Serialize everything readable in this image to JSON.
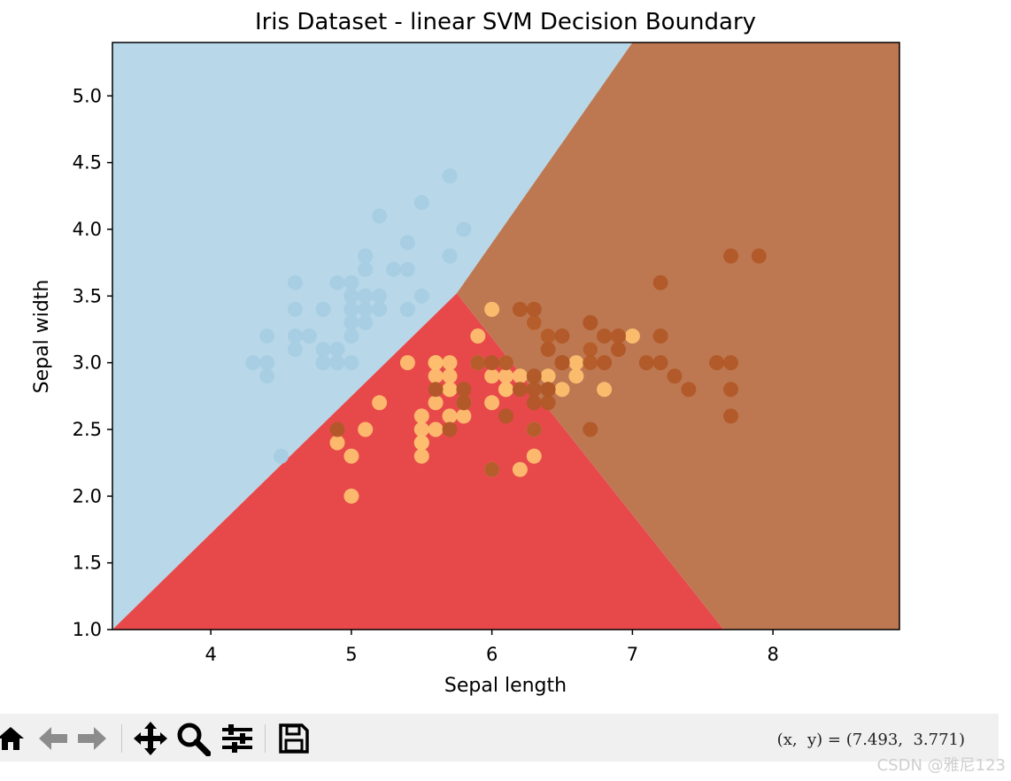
{
  "chart_data": {
    "type": "scatter",
    "title": "Iris Dataset - linear SVM Decision Boundary",
    "xlabel": "Sepal length",
    "ylabel": "Sepal width",
    "xlim": [
      3.3,
      8.9
    ],
    "ylim": [
      1.0,
      5.4
    ],
    "xticks": [
      "4",
      "5",
      "6",
      "7",
      "8"
    ],
    "xtick_values": [
      4,
      5,
      6,
      7,
      8
    ],
    "yticks": [
      "1.0",
      "1.5",
      "2.0",
      "2.5",
      "3.0",
      "3.5",
      "4.0",
      "4.5",
      "5.0"
    ],
    "ytick_values": [
      1.0,
      1.5,
      2.0,
      2.5,
      3.0,
      3.5,
      4.0,
      4.5,
      5.0
    ],
    "grid": false,
    "legend": "none",
    "regions": [
      {
        "class": "setosa",
        "color": "#b8d8e9",
        "polygon": [
          [
            3.3,
            1.0
          ],
          [
            5.75,
            3.52
          ],
          [
            7.0,
            5.4
          ],
          [
            3.3,
            5.4
          ]
        ]
      },
      {
        "class": "versicolor",
        "color": "#e7494b",
        "polygon": [
          [
            3.3,
            1.0
          ],
          [
            5.75,
            3.52
          ],
          [
            7.65,
            1.0
          ]
        ]
      },
      {
        "class": "virginica",
        "color": "#bd7852",
        "polygon": [
          [
            5.75,
            3.52
          ],
          [
            7.0,
            5.4
          ],
          [
            8.9,
            5.4
          ],
          [
            8.9,
            1.0
          ],
          [
            7.65,
            1.0
          ]
        ]
      }
    ],
    "series": [
      {
        "color": "#a6cee3",
        "x": [
          5.1,
          4.9,
          4.7,
          4.6,
          5.0,
          5.4,
          4.6,
          5.0,
          4.4,
          4.9,
          5.4,
          4.8,
          4.8,
          4.3,
          5.8,
          5.7,
          5.4,
          5.1,
          5.7,
          5.1,
          5.4,
          5.1,
          4.6,
          5.1,
          4.8,
          5.0,
          5.0,
          5.2,
          5.2,
          4.7,
          4.8,
          5.4,
          5.2,
          5.5,
          4.9,
          5.0,
          5.5,
          4.9,
          4.4,
          5.1,
          5.0,
          4.5,
          4.4,
          5.0,
          5.1,
          4.8,
          5.1,
          4.6,
          5.3,
          5.0
        ],
        "y": [
          3.5,
          3.0,
          3.2,
          3.1,
          3.6,
          3.9,
          3.4,
          3.4,
          2.9,
          3.1,
          3.7,
          3.4,
          3.0,
          3.0,
          4.0,
          4.4,
          3.9,
          3.5,
          3.8,
          3.8,
          3.4,
          3.7,
          3.6,
          3.3,
          3.4,
          3.0,
          3.4,
          3.5,
          3.4,
          3.2,
          3.1,
          3.4,
          4.1,
          4.2,
          3.1,
          3.2,
          3.5,
          3.6,
          3.0,
          3.4,
          3.5,
          2.3,
          3.2,
          3.5,
          3.8,
          3.0,
          3.8,
          3.2,
          3.7,
          3.3
        ]
      },
      {
        "color": "#fdbf6f",
        "x": [
          7.0,
          6.4,
          6.9,
          5.5,
          6.5,
          5.7,
          6.3,
          4.9,
          6.6,
          5.2,
          5.0,
          5.9,
          6.0,
          6.1,
          5.6,
          6.7,
          5.6,
          5.8,
          6.2,
          5.6,
          5.9,
          6.1,
          6.3,
          6.1,
          6.4,
          6.6,
          6.8,
          6.7,
          6.0,
          5.7,
          5.5,
          5.5,
          5.8,
          6.0,
          5.4,
          6.0,
          6.7,
          6.3,
          5.6,
          5.5,
          5.5,
          6.1,
          5.8,
          5.0,
          5.6,
          5.7,
          5.7,
          6.2,
          5.1,
          5.7
        ],
        "y": [
          3.2,
          3.2,
          3.1,
          2.3,
          2.8,
          2.8,
          3.3,
          2.4,
          2.9,
          2.7,
          2.0,
          3.0,
          2.2,
          2.9,
          2.9,
          3.1,
          3.0,
          2.7,
          2.2,
          2.5,
          3.2,
          2.8,
          2.5,
          2.8,
          2.9,
          3.0,
          2.8,
          3.0,
          2.9,
          2.6,
          2.4,
          2.4,
          2.7,
          2.7,
          3.0,
          3.4,
          3.1,
          2.3,
          3.0,
          2.5,
          2.6,
          3.0,
          2.6,
          2.3,
          2.7,
          3.0,
          2.9,
          2.9,
          2.5,
          2.8
        ]
      },
      {
        "color": "#b15928",
        "x": [
          6.3,
          5.8,
          7.1,
          6.3,
          6.5,
          7.6,
          4.9,
          7.3,
          6.7,
          7.2,
          6.5,
          6.4,
          6.8,
          5.7,
          5.8,
          6.4,
          6.5,
          7.7,
          7.7,
          6.0,
          6.9,
          5.6,
          7.7,
          6.3,
          6.7,
          7.2,
          6.2,
          6.1,
          6.4,
          7.2,
          7.4,
          7.9,
          6.4,
          6.3,
          6.1,
          7.7,
          6.3,
          6.4,
          6.0,
          6.9,
          6.7,
          6.9,
          5.8,
          6.8,
          6.7,
          6.7,
          6.3,
          6.5,
          6.2,
          5.9
        ],
        "y": [
          3.3,
          2.7,
          3.0,
          2.9,
          3.0,
          3.0,
          2.5,
          2.9,
          2.5,
          3.6,
          3.2,
          2.7,
          3.0,
          2.5,
          2.8,
          3.2,
          3.0,
          3.8,
          2.6,
          2.2,
          3.2,
          2.8,
          2.8,
          2.7,
          3.3,
          3.2,
          2.8,
          3.0,
          2.8,
          3.0,
          2.8,
          3.8,
          2.8,
          2.8,
          2.6,
          3.0,
          3.4,
          3.1,
          3.0,
          3.1,
          3.1,
          3.1,
          2.7,
          3.2,
          3.3,
          3.0,
          2.5,
          3.0,
          3.4,
          3.0
        ]
      }
    ]
  },
  "toolbar": {
    "buttons": [
      {
        "name": "home-button",
        "icon": "home-icon",
        "label": "Home"
      },
      {
        "name": "back-button",
        "icon": "arrow-left-icon",
        "label": "Back"
      },
      {
        "name": "forward-button",
        "icon": "arrow-right-icon",
        "label": "Forward"
      },
      {
        "name": "pan-button",
        "icon": "move-icon",
        "label": "Pan"
      },
      {
        "name": "zoom-button",
        "icon": "magnifier-icon",
        "label": "Zoom"
      },
      {
        "name": "configure-subplots-button",
        "icon": "sliders-icon",
        "label": "Subplots"
      },
      {
        "name": "save-button",
        "icon": "floppy-disk-icon",
        "label": "Save"
      }
    ],
    "coords": "(x,  y) = (7.493,  3.771)"
  },
  "watermark": "CSDN @雅尼123"
}
